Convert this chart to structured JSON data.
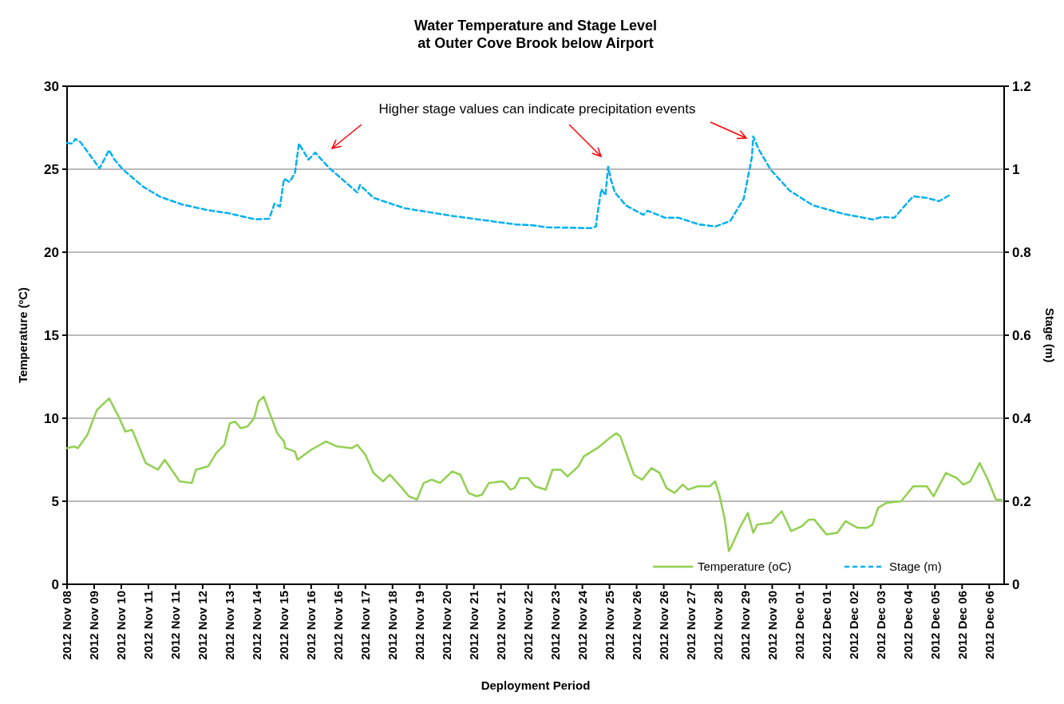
{
  "chart_data": {
    "type": "line",
    "title": "Water Temperature and Stage Level\nat Outer Cove Brook below Airport",
    "xlabel": "Deployment Period",
    "ylabel": "Temperature (ºC)",
    "y2label": "Stage (m)",
    "annotations": [
      "Higher stage values can indicate precipitation events"
    ],
    "xlim": [
      "2012-11-08T12:00",
      "2012-12-07T07:00"
    ],
    "xticks": [
      {
        "value": "2012-11-08T12:00",
        "label": "2012 Nov 08"
      },
      {
        "value": "2012-11-09T08:00",
        "label": "2012 Nov 09"
      },
      {
        "value": "2012-11-10T04:00",
        "label": "2012 Nov 10"
      },
      {
        "value": "2012-11-11T00:00",
        "label": "2012 Nov 11"
      },
      {
        "value": "2012-11-11T20:00",
        "label": "2012 Nov 11"
      },
      {
        "value": "2012-11-12T16:00",
        "label": "2012 Nov 12"
      },
      {
        "value": "2012-11-13T12:00",
        "label": "2012 Nov 13"
      },
      {
        "value": "2012-11-14T08:00",
        "label": "2012 Nov 14"
      },
      {
        "value": "2012-11-15T04:00",
        "label": "2012 Nov 15"
      },
      {
        "value": "2012-11-16T00:00",
        "label": "2012 Nov 16"
      },
      {
        "value": "2012-11-16T20:00",
        "label": "2012 Nov 16"
      },
      {
        "value": "2012-11-17T16:00",
        "label": "2012 Nov 17"
      },
      {
        "value": "2012-11-18T12:00",
        "label": "2012 Nov 18"
      },
      {
        "value": "2012-11-19T08:00",
        "label": "2012 Nov 19"
      },
      {
        "value": "2012-11-20T04:00",
        "label": "2012 Nov 20"
      },
      {
        "value": "2012-11-21T00:00",
        "label": "2012 Nov 21"
      },
      {
        "value": "2012-11-21T20:00",
        "label": "2012 Nov 21"
      },
      {
        "value": "2012-11-22T16:00",
        "label": "2012 Nov 22"
      },
      {
        "value": "2012-11-23T12:00",
        "label": "2012 Nov 23"
      },
      {
        "value": "2012-11-24T08:00",
        "label": "2012 Nov 24"
      },
      {
        "value": "2012-11-25T04:00",
        "label": "2012 Nov 25"
      },
      {
        "value": "2012-11-26T00:00",
        "label": "2012 Nov 26"
      },
      {
        "value": "2012-11-26T20:00",
        "label": "2012 Nov 26"
      },
      {
        "value": "2012-11-27T16:00",
        "label": "2012 Nov 27"
      },
      {
        "value": "2012-11-28T12:00",
        "label": "2012 Nov 28"
      },
      {
        "value": "2012-11-29T08:00",
        "label": "2012 Nov 29"
      },
      {
        "value": "2012-11-30T04:00",
        "label": "2012 Nov 30"
      },
      {
        "value": "2012-12-01T00:00",
        "label": "2012 Dec 01"
      },
      {
        "value": "2012-12-01T20:00",
        "label": "2012 Dec 01"
      },
      {
        "value": "2012-12-02T16:00",
        "label": "2012 Dec 02"
      },
      {
        "value": "2012-12-03T12:00",
        "label": "2012 Dec 03"
      },
      {
        "value": "2012-12-04T08:00",
        "label": "2012 Dec 04"
      },
      {
        "value": "2012-12-05T04:00",
        "label": "2012 Dec 05"
      },
      {
        "value": "2012-12-06T00:00",
        "label": "2012 Dec 06"
      },
      {
        "value": "2012-12-06T20:00",
        "label": "2012 Dec 06"
      }
    ],
    "ylim": [
      0,
      30
    ],
    "yticks": [
      0,
      5,
      10,
      15,
      20,
      25,
      30
    ],
    "y2lim": [
      0,
      1.2
    ],
    "y2ticks": [
      0,
      {
        "value": 0.2,
        "label": "0.2"
      },
      {
        "value": 0.4,
        "label": "0.4"
      },
      {
        "value": 0.6,
        "label": "0.6"
      },
      {
        "value": 0.8,
        "label": "0.8"
      },
      1,
      {
        "value": 1.2,
        "label": "1.2"
      }
    ],
    "grid": "y",
    "legend": "bottom right",
    "series": [
      {
        "name": "Temperature (oC)",
        "color": "#92d050",
        "line_style": "solid",
        "x": [
          "2012-11-08T12:00",
          "2012-11-08T17:00",
          "2012-11-08T20:00",
          "2012-11-09T03:00",
          "2012-11-09T10:00",
          "2012-11-09T19:00",
          "2012-11-10T02:00",
          "2012-11-10T07:00",
          "2012-11-10T12:00",
          "2012-11-10T22:00",
          "2012-11-11T07:00",
          "2012-11-11T12:00",
          "2012-11-11T23:00",
          "2012-11-12T08:00",
          "2012-11-12T11:00",
          "2012-11-12T20:00",
          "2012-11-13T02:00",
          "2012-11-13T08:00",
          "2012-11-13T12:00",
          "2012-11-13T16:00",
          "2012-11-13T20:00",
          "2012-11-14T01:00",
          "2012-11-14T06:00",
          "2012-11-14T09:00",
          "2012-11-14T13:00",
          "2012-11-14T17:00",
          "2012-11-14T23:00",
          "2012-11-15T04:00",
          "2012-11-15T05:00",
          "2012-11-15T12:00",
          "2012-11-15T14:00",
          "2012-11-16T00:00",
          "2012-11-16T11:00",
          "2012-11-16T19:00",
          "2012-11-17T06:00",
          "2012-11-17T10:00",
          "2012-11-17T16:00",
          "2012-11-17T22:00",
          "2012-11-18T05:00",
          "2012-11-18T10:00",
          "2012-11-18T19:00",
          "2012-11-19T00:00",
          "2012-11-19T06:00",
          "2012-11-19T11:00",
          "2012-11-19T17:00",
          "2012-11-19T23:00",
          "2012-11-20T08:00",
          "2012-11-20T14:00",
          "2012-11-20T20:00",
          "2012-11-21T02:00",
          "2012-11-21T06:00",
          "2012-11-21T11:00",
          "2012-11-21T21:00",
          "2012-11-21T23:00",
          "2012-11-22T03:00",
          "2012-11-22T06:00",
          "2012-11-22T10:00",
          "2012-11-22T16:00",
          "2012-11-22T21:00",
          "2012-11-23T05:00",
          "2012-11-23T10:00",
          "2012-11-23T16:00",
          "2012-11-23T21:00",
          "2012-11-24T05:00",
          "2012-11-24T09:00",
          "2012-11-24T19:00",
          "2012-11-25T04:00",
          "2012-11-25T09:00",
          "2012-11-25T12:00",
          "2012-11-25T22:00",
          "2012-11-26T04:00",
          "2012-11-26T11:00",
          "2012-11-26T17:00",
          "2012-11-26T22:00",
          "2012-11-27T04:00",
          "2012-11-27T10:00",
          "2012-11-27T14:00",
          "2012-11-27T21:00",
          "2012-11-28T06:00",
          "2012-11-28T10:00",
          "2012-11-28T13:00",
          "2012-11-28T17:00",
          "2012-11-28T20:00",
          "2012-11-28T22:00",
          "2012-11-29T04:00",
          "2012-11-29T10:00",
          "2012-11-29T14:00",
          "2012-11-29T17:00",
          "2012-11-30T03:00",
          "2012-11-30T11:00",
          "2012-11-30T18:00",
          "2012-12-01T02:00",
          "2012-12-01T07:00",
          "2012-12-01T11:00",
          "2012-12-01T14:00",
          "2012-12-01T20:00",
          "2012-12-02T04:00",
          "2012-12-02T10:00",
          "2012-12-02T19:00",
          "2012-12-03T02:00",
          "2012-12-03T06:00",
          "2012-12-03T10:00",
          "2012-12-03T16:00",
          "2012-12-04T03:00",
          "2012-12-04T12:00",
          "2012-12-04T22:00",
          "2012-12-05T03:00",
          "2012-12-05T12:00",
          "2012-12-05T20:00",
          "2012-12-06T01:00",
          "2012-12-06T06:00",
          "2012-12-06T13:00",
          "2012-12-06T19:00",
          "2012-12-07T01:00",
          "2012-12-07T05:00"
        ],
        "values": [
          8.2,
          8.3,
          8.2,
          9,
          10.5,
          11.2,
          10.1,
          9.2,
          9.3,
          7.3,
          6.9,
          7.5,
          6.2,
          6.1,
          6.9,
          7.1,
          7.9,
          8.4,
          9.7,
          9.8,
          9.4,
          9.5,
          10,
          11,
          11.3,
          10.4,
          9.1,
          8.6,
          8.2,
          8,
          7.5,
          8.1,
          8.6,
          8.3,
          8.2,
          8.4,
          7.8,
          6.7,
          6.2,
          6.6,
          5.8,
          5.3,
          5.1,
          6.1,
          6.3,
          6.1,
          6.8,
          6.6,
          5.5,
          5.3,
          5.4,
          6.1,
          6.2,
          6.1,
          5.7,
          5.8,
          6.4,
          6.4,
          5.9,
          5.7,
          6.9,
          6.9,
          6.5,
          7.1,
          7.7,
          8.2,
          8.8,
          9.1,
          8.9,
          6.6,
          6.3,
          7,
          6.7,
          5.8,
          5.5,
          6,
          5.7,
          5.9,
          5.9,
          6.2,
          5.4,
          3.9,
          2,
          2.3,
          3.4,
          4.3,
          3.1,
          3.6,
          3.7,
          4.4,
          3.2,
          3.5,
          3.9,
          3.9,
          3.6,
          3,
          3.1,
          3.8,
          3.4,
          3.4,
          3.6,
          4.6,
          4.9,
          5,
          5.9,
          5.9,
          5.3,
          6.7,
          6.4,
          6,
          6.2,
          7.3,
          6.3,
          5.1,
          5.1
        ]
      },
      {
        "name": "Stage (m)",
        "color": "#00b0f0",
        "line_style": "dashed",
        "axis": "y2",
        "x": [
          "2012-11-08T12:00",
          "2012-11-08T16:00",
          "2012-11-08T18:00",
          "2012-11-08T22:00",
          "2012-11-09T12:00",
          "2012-11-09T15:00",
          "2012-11-09T19:00",
          "2012-11-09T23:00",
          "2012-11-10T05:00",
          "2012-11-10T20:00",
          "2012-11-11T09:00",
          "2012-11-12T01:00",
          "2012-11-12T19:00",
          "2012-11-13T11:00",
          "2012-11-14T07:00",
          "2012-11-14T17:00",
          "2012-11-14T21:00",
          "2012-11-15T01:00",
          "2012-11-15T04:00",
          "2012-11-15T08:00",
          "2012-11-15T12:00",
          "2012-11-15T15:00",
          "2012-11-15T22:00",
          "2012-11-16T03:00",
          "2012-11-16T13:00",
          "2012-11-17T10:00",
          "2012-11-17T12:00",
          "2012-11-17T22:00",
          "2012-11-18T21:00",
          "2012-11-20T07:00",
          "2012-11-21T17:00",
          "2012-11-22T07:00",
          "2012-11-22T19:00",
          "2012-11-23T06:00",
          "2012-11-24T15:00",
          "2012-11-24T18:00",
          "2012-11-24T19:00",
          "2012-11-24T22:00",
          "2012-11-25T01:00",
          "2012-11-25T03:00",
          "2012-11-25T05:00",
          "2012-11-25T08:00",
          "2012-11-25T16:00",
          "2012-11-26T05:00",
          "2012-11-26T08:00",
          "2012-11-26T21:00",
          "2012-11-27T07:00",
          "2012-11-27T22:00",
          "2012-11-28T10:00",
          "2012-11-28T21:00",
          "2012-11-29T07:00",
          "2012-11-29T13:00",
          "2012-11-29T14:00",
          "2012-11-29T18:00",
          "2012-11-30T03:00",
          "2012-11-30T17:00",
          "2012-12-01T10:00",
          "2012-12-02T09:00",
          "2012-12-03T06:00",
          "2012-12-03T13:00",
          "2012-12-03T22:00",
          "2012-12-04T06:00",
          "2012-12-04T12:00",
          "2012-12-04T22:00",
          "2012-12-05T07:00",
          "2012-12-05T15:00"
        ],
        "values": [
          1.063,
          1.062,
          1.073,
          1.065,
          1.002,
          1.021,
          1.046,
          1.023,
          1,
          0.958,
          0.933,
          0.915,
          0.902,
          0.894,
          0.879,
          0.881,
          0.917,
          0.91,
          0.977,
          0.969,
          0.99,
          1.062,
          1.023,
          1.04,
          1.004,
          0.944,
          0.962,
          0.931,
          0.906,
          0.888,
          0.873,
          0.867,
          0.865,
          0.86,
          0.858,
          0.862,
          0.89,
          0.952,
          0.937,
          1.006,
          0.975,
          0.944,
          0.913,
          0.89,
          0.9,
          0.883,
          0.883,
          0.867,
          0.862,
          0.875,
          0.929,
          1.029,
          1.079,
          1.048,
          0.998,
          0.948,
          0.913,
          0.892,
          0.879,
          0.885,
          0.883,
          0.913,
          0.935,
          0.931,
          0.923,
          0.938
        ]
      }
    ]
  }
}
